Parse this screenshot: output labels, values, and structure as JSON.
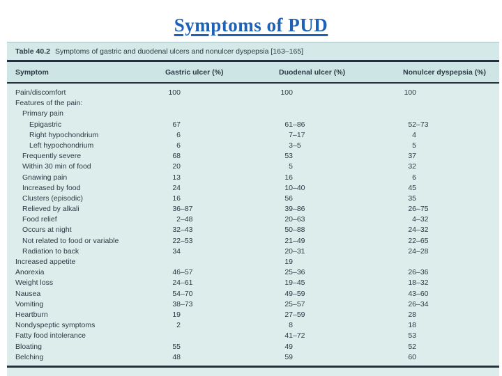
{
  "title": "Symptoms of PUD",
  "colors": {
    "title_blue": "#1d62b8",
    "body_teal": "#dcedec",
    "caption_teal": "#d5e9e8",
    "header_teal": "#cde6e5",
    "rule_dark": "#22313d",
    "text_dark": "#2b3a44"
  },
  "table": {
    "caption_label": "Table 40.2",
    "caption_text": "Symptoms of gastric and duodenal ulcers and nonulcer dyspepsia [163–165]",
    "columns": [
      "Symptom",
      "Gastric ulcer (%)",
      "Duodenal ulcer (%)",
      "Nonulcer dyspepsia (%)"
    ],
    "rows": [
      {
        "symptom": "Pain/discomfort",
        "indent": 0,
        "gastric": "100",
        "duodenal": "100",
        "nonulcer": "100"
      },
      {
        "symptom": "Features of the pain:",
        "indent": 0,
        "gastric": "",
        "duodenal": "",
        "nonulcer": ""
      },
      {
        "symptom": "Primary pain",
        "indent": 1,
        "gastric": "",
        "duodenal": "",
        "nonulcer": ""
      },
      {
        "symptom": "Epigastric",
        "indent": 2,
        "gastric": "67",
        "duodenal": "61–86",
        "nonulcer": "52–73"
      },
      {
        "symptom": "Right hypochondrium",
        "indent": 2,
        "gastric": "6",
        "duodenal": "7–17",
        "nonulcer": "4"
      },
      {
        "symptom": "Left hypochondrium",
        "indent": 2,
        "gastric": "6",
        "duodenal": "3–5",
        "nonulcer": "5"
      },
      {
        "symptom": "Frequently severe",
        "indent": 1,
        "gastric": "68",
        "duodenal": "53",
        "nonulcer": "37"
      },
      {
        "symptom": "Within 30 min of food",
        "indent": 1,
        "gastric": "20",
        "duodenal": "5",
        "nonulcer": "32"
      },
      {
        "symptom": "Gnawing pain",
        "indent": 1,
        "gastric": "13",
        "duodenal": "16",
        "nonulcer": "6"
      },
      {
        "symptom": "Increased by food",
        "indent": 1,
        "gastric": "24",
        "duodenal": "10–40",
        "nonulcer": "45"
      },
      {
        "symptom": "Clusters (episodic)",
        "indent": 1,
        "gastric": "16",
        "duodenal": "56",
        "nonulcer": "35"
      },
      {
        "symptom": "Relieved by alkali",
        "indent": 1,
        "gastric": "36–87",
        "duodenal": "39–86",
        "nonulcer": "26–75"
      },
      {
        "symptom": "Food relief",
        "indent": 1,
        "gastric": "2–48",
        "duodenal": "20–63",
        "nonulcer": "4–32"
      },
      {
        "symptom": "Occurs at night",
        "indent": 1,
        "gastric": "32–43",
        "duodenal": "50–88",
        "nonulcer": "24–32"
      },
      {
        "symptom": "Not related to food or variable",
        "indent": 1,
        "gastric": "22–53",
        "duodenal": "21–49",
        "nonulcer": "22–65"
      },
      {
        "symptom": "Radiation to back",
        "indent": 1,
        "gastric": "34",
        "duodenal": "20–31",
        "nonulcer": "24–28"
      },
      {
        "symptom": "Increased appetite",
        "indent": 0,
        "gastric": "",
        "duodenal": "19",
        "nonulcer": ""
      },
      {
        "symptom": "Anorexia",
        "indent": 0,
        "gastric": "46–57",
        "duodenal": "25–36",
        "nonulcer": "26–36"
      },
      {
        "symptom": "Weight loss",
        "indent": 0,
        "gastric": "24–61",
        "duodenal": "19–45",
        "nonulcer": "18–32"
      },
      {
        "symptom": "Nausea",
        "indent": 0,
        "gastric": "54–70",
        "duodenal": "49–59",
        "nonulcer": "43–60"
      },
      {
        "symptom": "Vomiting",
        "indent": 0,
        "gastric": "38–73",
        "duodenal": "25–57",
        "nonulcer": "26–34"
      },
      {
        "symptom": "Heartburn",
        "indent": 0,
        "gastric": "19",
        "duodenal": "27–59",
        "nonulcer": "28"
      },
      {
        "symptom": "Nondyspeptic symptoms",
        "indent": 0,
        "gastric": "2",
        "duodenal": "8",
        "nonulcer": "18"
      },
      {
        "symptom": "Fatty food intolerance",
        "indent": 0,
        "gastric": "",
        "duodenal": "41–72",
        "nonulcer": "53"
      },
      {
        "symptom": "Bloating",
        "indent": 0,
        "gastric": "55",
        "duodenal": "49",
        "nonulcer": "52"
      },
      {
        "symptom": "Belching",
        "indent": 0,
        "gastric": "48",
        "duodenal": "59",
        "nonulcer": "60"
      }
    ]
  }
}
